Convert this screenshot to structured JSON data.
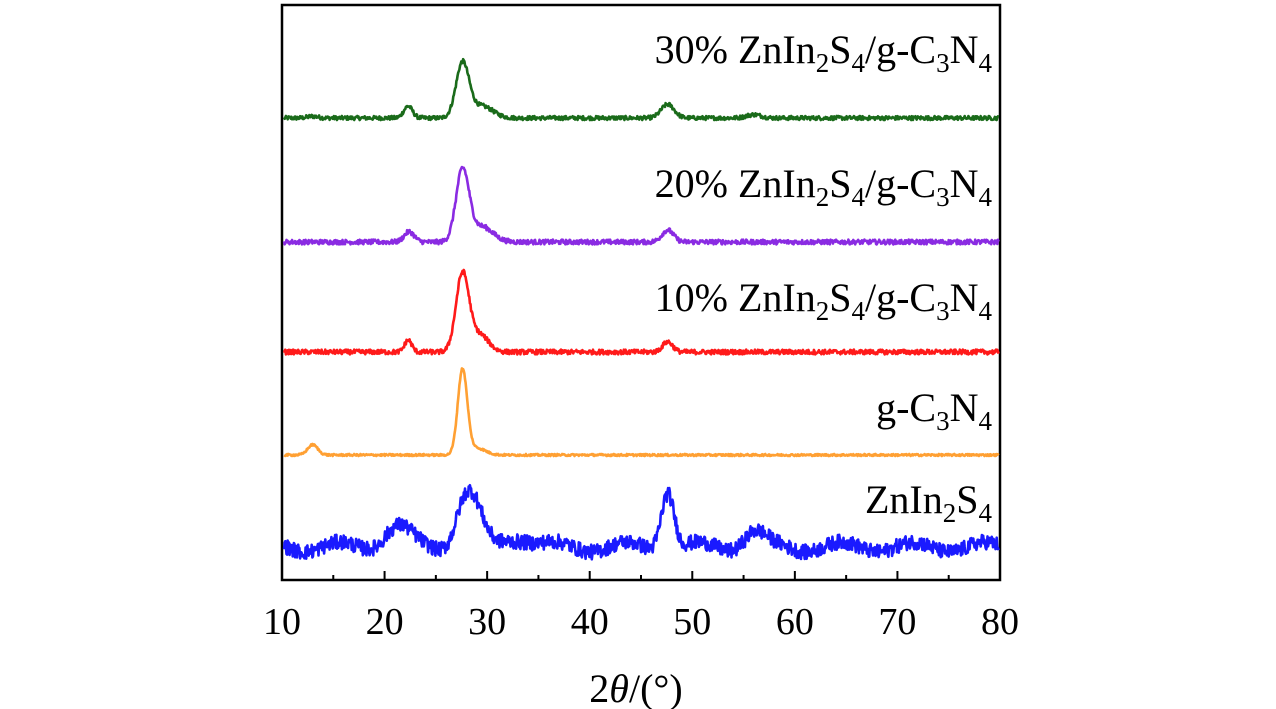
{
  "chart_data": {
    "type": "line",
    "title": "",
    "xlabel": "2θ/(°)",
    "xlabel_parts": {
      "prefix": "2",
      "theta": "θ",
      "suffix": "/(°)"
    },
    "ylabel": "",
    "xlim": [
      10,
      80
    ],
    "x_ticks": [
      10,
      20,
      30,
      40,
      50,
      60,
      70,
      80
    ],
    "y_ticks_shown": false,
    "grid": false,
    "legend": "inline labels at right of each trace",
    "series": [
      {
        "name": "30% ZnIn2S4/g-C3N4",
        "label_parts": [
          [
            "30% ZnIn",
            false
          ],
          [
            "2",
            true
          ],
          [
            "S",
            false
          ],
          [
            "4",
            true
          ],
          [
            "/g-C",
            false
          ],
          [
            "3",
            true
          ],
          [
            "N",
            false
          ],
          [
            "4",
            true
          ]
        ],
        "color": "#1a6b1a",
        "baseline": 0.0,
        "offset": 4,
        "noise": 0.06,
        "peaks": [
          {
            "x": 13.0,
            "h": 0.05,
            "w": 0.7
          },
          {
            "x": 22.3,
            "h": 0.35,
            "w": 0.6
          },
          {
            "x": 27.6,
            "h": 1.6,
            "w": 0.9
          },
          {
            "x": 29.5,
            "h": 0.35,
            "w": 1.5
          },
          {
            "x": 47.6,
            "h": 0.4,
            "w": 0.9
          },
          {
            "x": 56.0,
            "h": 0.1,
            "w": 1.0
          }
        ]
      },
      {
        "name": "20% ZnIn2S4/g-C3N4",
        "label_parts": [
          [
            "20% ZnIn",
            false
          ],
          [
            "2",
            true
          ],
          [
            "S",
            false
          ],
          [
            "4",
            true
          ],
          [
            "/g-C",
            false
          ],
          [
            "3",
            true
          ],
          [
            "N",
            false
          ],
          [
            "4",
            true
          ]
        ],
        "color": "#8a2be2",
        "baseline": 0.0,
        "offset": 3,
        "noise": 0.07,
        "peaks": [
          {
            "x": 22.4,
            "h": 0.3,
            "w": 0.7
          },
          {
            "x": 27.6,
            "h": 2.1,
            "w": 0.9
          },
          {
            "x": 29.5,
            "h": 0.45,
            "w": 1.5
          },
          {
            "x": 47.6,
            "h": 0.35,
            "w": 0.8
          }
        ]
      },
      {
        "name": "10% ZnIn2S4/g-C3N4",
        "label_parts": [
          [
            "10% ZnIn",
            false
          ],
          [
            "2",
            true
          ],
          [
            "S",
            false
          ],
          [
            "4",
            true
          ],
          [
            "/g-C",
            false
          ],
          [
            "3",
            true
          ],
          [
            "N",
            false
          ],
          [
            "4",
            true
          ]
        ],
        "color": "#ff1a1a",
        "baseline": 0.0,
        "offset": 2,
        "noise": 0.07,
        "peaks": [
          {
            "x": 22.3,
            "h": 0.35,
            "w": 0.5
          },
          {
            "x": 27.6,
            "h": 2.3,
            "w": 0.9
          },
          {
            "x": 29.3,
            "h": 0.5,
            "w": 1.2
          },
          {
            "x": 47.6,
            "h": 0.3,
            "w": 0.7
          }
        ]
      },
      {
        "name": "g-C3N4",
        "label_parts": [
          [
            "g-C",
            false
          ],
          [
            "3",
            true
          ],
          [
            "N",
            false
          ],
          [
            "4",
            true
          ]
        ],
        "color": "#ffa033",
        "baseline": 0.0,
        "offset": 1,
        "noise": 0.03,
        "peaks": [
          {
            "x": 13.0,
            "h": 0.3,
            "w": 0.7
          },
          {
            "x": 27.6,
            "h": 2.5,
            "w": 0.65
          },
          {
            "x": 29.0,
            "h": 0.2,
            "w": 1.2
          }
        ]
      },
      {
        "name": "ZnIn2S4",
        "label_parts": [
          [
            "ZnIn",
            false
          ],
          [
            "2",
            true
          ],
          [
            "S",
            false
          ],
          [
            "4",
            true
          ]
        ],
        "color": "#1a1aff",
        "baseline": 0.0,
        "offset": 0,
        "noise": 0.22,
        "peaks": [
          {
            "x": 21.2,
            "h": 0.6,
            "w": 1.8
          },
          {
            "x": 27.8,
            "h": 1.3,
            "w": 1.3
          },
          {
            "x": 29.0,
            "h": 0.7,
            "w": 1.2
          },
          {
            "x": 33.0,
            "h": 0.3,
            "w": 2.0
          },
          {
            "x": 47.6,
            "h": 1.7,
            "w": 0.9
          },
          {
            "x": 56.0,
            "h": 0.45,
            "w": 1.4
          }
        ]
      }
    ]
  }
}
